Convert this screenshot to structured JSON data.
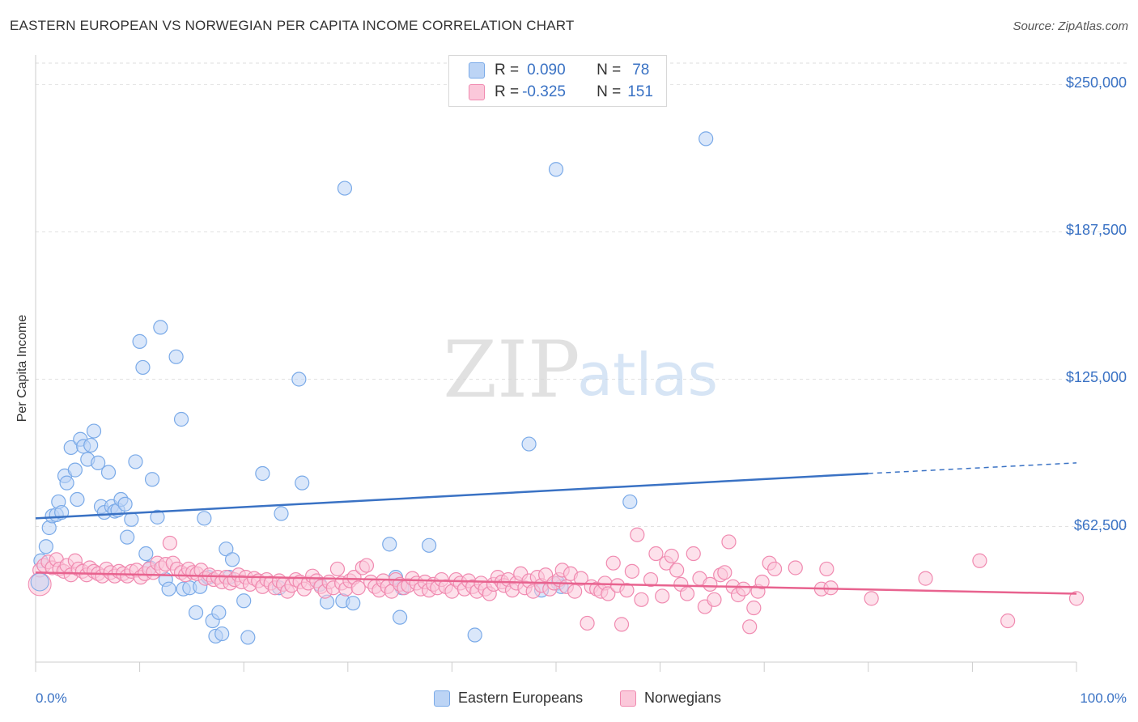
{
  "title": "EASTERN EUROPEAN VS NORWEGIAN PER CAPITA INCOME CORRELATION CHART",
  "source": "Source: ZipAtlas.com",
  "watermark": {
    "zip": "ZIP",
    "atlas": "atlas"
  },
  "legend_stats": [
    {
      "r_label": "R =",
      "r_value": "0.090",
      "n_label": "N =",
      "n_value": "78",
      "color": "#7aaae8",
      "fill": "#bcd4f5"
    },
    {
      "r_label": "R =",
      "r_value": "-0.325",
      "n_label": "N =",
      "n_value": "151",
      "color": "#f08ab0",
      "fill": "#fbc8da"
    }
  ],
  "bottom_legend": [
    {
      "label": "Eastern Europeans",
      "color": "#7aaae8",
      "fill": "#bcd4f5"
    },
    {
      "label": "Norwegians",
      "color": "#f08ab0",
      "fill": "#fbc8da"
    }
  ],
  "x_tick_labels": {
    "left": "0.0%",
    "right": "100.0%"
  },
  "chart_data": {
    "type": "scatter",
    "title": "EASTERN EUROPEAN VS NORWEGIAN PER CAPITA INCOME CORRELATION CHART",
    "xlabel": "",
    "ylabel": "Per Capita Income",
    "xlim": [
      0,
      100
    ],
    "ylim": [
      5000,
      262500
    ],
    "y_ticks": [
      {
        "value": 62500,
        "label": "$62,500"
      },
      {
        "value": 125000,
        "label": "$125,000"
      },
      {
        "value": 187500,
        "label": "$187,500"
      },
      {
        "value": 250000,
        "label": "$250,000"
      }
    ],
    "grid": true,
    "series": [
      {
        "name": "Eastern Europeans",
        "color": "#3a72c4",
        "point_color": "#7aaae8",
        "fill": "#bcd4f5",
        "trend": {
          "x0": 0,
          "y0": 66000,
          "x1": 80,
          "y1": 85000,
          "dash_to_x": 100,
          "dash_to_y": 89500
        },
        "points": [
          [
            0.5,
            48000
          ],
          [
            1,
            54000
          ],
          [
            1.3,
            62000
          ],
          [
            1.6,
            67000
          ],
          [
            2,
            67500
          ],
          [
            2.2,
            73000
          ],
          [
            2.5,
            68500
          ],
          [
            2.8,
            84000
          ],
          [
            3,
            81000
          ],
          [
            3.4,
            96000
          ],
          [
            3.8,
            86500
          ],
          [
            4,
            74000
          ],
          [
            4.3,
            99500
          ],
          [
            4.6,
            96500
          ],
          [
            5,
            91000
          ],
          [
            5.3,
            97000
          ],
          [
            5.6,
            103000
          ],
          [
            6,
            89500
          ],
          [
            6.3,
            71000
          ],
          [
            6.6,
            68500
          ],
          [
            7,
            85500
          ],
          [
            7.3,
            71000
          ],
          [
            7.6,
            69000
          ],
          [
            7.9,
            69500
          ],
          [
            8.2,
            74000
          ],
          [
            8.6,
            72000
          ],
          [
            8.8,
            58000
          ],
          [
            9.2,
            65500
          ],
          [
            9.6,
            90000
          ],
          [
            10,
            141000
          ],
          [
            10.3,
            130000
          ],
          [
            10.6,
            51000
          ],
          [
            11,
            45000
          ],
          [
            11.2,
            82500
          ],
          [
            11.7,
            66500
          ],
          [
            12,
            147000
          ],
          [
            12.5,
            40000
          ],
          [
            12.8,
            36000
          ],
          [
            13.5,
            134500
          ],
          [
            14,
            108000
          ],
          [
            14.2,
            36000
          ],
          [
            14.8,
            36500
          ],
          [
            15.4,
            26000
          ],
          [
            15.8,
            37000
          ],
          [
            16.2,
            66000
          ],
          [
            16.6,
            41000
          ],
          [
            17,
            22500
          ],
          [
            17.3,
            16000
          ],
          [
            17.6,
            26000
          ],
          [
            17.9,
            17000
          ],
          [
            18.3,
            53000
          ],
          [
            18.6,
            41000
          ],
          [
            18.9,
            48500
          ],
          [
            20,
            31000
          ],
          [
            20.4,
            15500
          ],
          [
            21.8,
            85000
          ],
          [
            23.4,
            36500
          ],
          [
            23.6,
            68000
          ],
          [
            25.3,
            125000
          ],
          [
            25.6,
            81000
          ],
          [
            27.3,
            38000
          ],
          [
            28,
            30500
          ],
          [
            29.5,
            31000
          ],
          [
            29.7,
            206000
          ],
          [
            30.5,
            30000
          ],
          [
            34,
            55000
          ],
          [
            34.6,
            41000
          ],
          [
            35,
            24000
          ],
          [
            35.2,
            36500
          ],
          [
            37.8,
            54500
          ],
          [
            42.2,
            16500
          ],
          [
            47.4,
            97500
          ],
          [
            48.6,
            35500
          ],
          [
            50,
            214000
          ],
          [
            50.2,
            38500
          ],
          [
            57.1,
            73000
          ],
          [
            64.4,
            227000
          ],
          [
            50.5,
            37000
          ]
        ]
      },
      {
        "name": "Norwegians",
        "color": "#e8638f",
        "point_color": "#f08ab0",
        "fill": "#fbc8da",
        "trend": {
          "x0": 0,
          "y0": 43000,
          "x1": 100,
          "y1": 34000
        },
        "points": [
          [
            0.4,
            44000
          ],
          [
            0.8,
            46000
          ],
          [
            1.2,
            47500
          ],
          [
            1.6,
            45000
          ],
          [
            2,
            48500
          ],
          [
            2.3,
            44500
          ],
          [
            2.7,
            43500
          ],
          [
            3,
            46000
          ],
          [
            3.4,
            42000
          ],
          [
            3.8,
            48000
          ],
          [
            4.1,
            44500
          ],
          [
            4.5,
            43500
          ],
          [
            4.9,
            42000
          ],
          [
            5.2,
            45000
          ],
          [
            5.6,
            43500
          ],
          [
            6,
            42500
          ],
          [
            6.4,
            41500
          ],
          [
            6.8,
            44500
          ],
          [
            7.2,
            43000
          ],
          [
            7.6,
            41500
          ],
          [
            8,
            43500
          ],
          [
            8.4,
            42500
          ],
          [
            8.8,
            41500
          ],
          [
            9.2,
            43500
          ],
          [
            9.7,
            44000
          ],
          [
            10.1,
            41000
          ],
          [
            10.5,
            42500
          ],
          [
            10.9,
            44500
          ],
          [
            11.3,
            43000
          ],
          [
            11.7,
            47000
          ],
          [
            12.1,
            45000
          ],
          [
            12.5,
            46500
          ],
          [
            12.9,
            55500
          ],
          [
            13.2,
            47000
          ],
          [
            13.6,
            44500
          ],
          [
            14,
            43000
          ],
          [
            14.4,
            42000
          ],
          [
            14.7,
            44500
          ],
          [
            15.1,
            43000
          ],
          [
            15.5,
            42500
          ],
          [
            15.9,
            44000
          ],
          [
            16.3,
            40500
          ],
          [
            16.7,
            42000
          ],
          [
            17.1,
            40000
          ],
          [
            17.5,
            41000
          ],
          [
            17.9,
            39000
          ],
          [
            18.3,
            41000
          ],
          [
            18.7,
            38500
          ],
          [
            19.1,
            40000
          ],
          [
            19.5,
            42000
          ],
          [
            19.8,
            39000
          ],
          [
            20.2,
            41000
          ],
          [
            20.6,
            38000
          ],
          [
            21,
            40500
          ],
          [
            21.4,
            39500
          ],
          [
            21.8,
            37000
          ],
          [
            22.2,
            40000
          ],
          [
            22.6,
            38500
          ],
          [
            23,
            36500
          ],
          [
            23.4,
            39500
          ],
          [
            23.8,
            38000
          ],
          [
            24.2,
            35000
          ],
          [
            24.6,
            37500
          ],
          [
            25,
            40000
          ],
          [
            25.4,
            39000
          ],
          [
            25.8,
            36000
          ],
          [
            26.2,
            38500
          ],
          [
            26.6,
            41500
          ],
          [
            27,
            39500
          ],
          [
            27.4,
            37000
          ],
          [
            27.8,
            35000
          ],
          [
            28.2,
            39000
          ],
          [
            28.6,
            36500
          ],
          [
            29,
            44500
          ],
          [
            29.4,
            38500
          ],
          [
            29.8,
            36000
          ],
          [
            30.2,
            39500
          ],
          [
            30.6,
            41000
          ],
          [
            31,
            36500
          ],
          [
            31.4,
            45000
          ],
          [
            31.8,
            46000
          ],
          [
            32.2,
            39000
          ],
          [
            32.6,
            37000
          ],
          [
            33,
            35500
          ],
          [
            33.4,
            39500
          ],
          [
            33.8,
            37000
          ],
          [
            34.2,
            35000
          ],
          [
            34.6,
            40000
          ],
          [
            35,
            38000
          ],
          [
            35.4,
            36500
          ],
          [
            35.8,
            37500
          ],
          [
            36.2,
            40500
          ],
          [
            36.6,
            38500
          ],
          [
            37,
            36000
          ],
          [
            37.4,
            39000
          ],
          [
            37.8,
            35500
          ],
          [
            38.2,
            38000
          ],
          [
            38.6,
            36500
          ],
          [
            39,
            40000
          ],
          [
            39.4,
            37000
          ],
          [
            40,
            35000
          ],
          [
            40.4,
            40000
          ],
          [
            40.8,
            38500
          ],
          [
            41.2,
            36000
          ],
          [
            41.6,
            39500
          ],
          [
            42,
            37000
          ],
          [
            42.4,
            35000
          ],
          [
            42.8,
            38500
          ],
          [
            43.2,
            36000
          ],
          [
            43.6,
            34000
          ],
          [
            44,
            38000
          ],
          [
            44.4,
            41000
          ],
          [
            44.8,
            39000
          ],
          [
            45,
            37500
          ],
          [
            45.4,
            40000
          ],
          [
            45.8,
            35500
          ],
          [
            46.2,
            38500
          ],
          [
            46.6,
            42500
          ],
          [
            47,
            36500
          ],
          [
            47.4,
            39500
          ],
          [
            47.8,
            35000
          ],
          [
            48.2,
            41000
          ],
          [
            48.6,
            37500
          ],
          [
            49,
            42000
          ],
          [
            49.4,
            36000
          ],
          [
            49.8,
            38500
          ],
          [
            50.3,
            40000
          ],
          [
            50.6,
            44000
          ],
          [
            51,
            37000
          ],
          [
            51.4,
            42500
          ],
          [
            51.8,
            35000
          ],
          [
            52.4,
            40500
          ],
          [
            53,
            21500
          ],
          [
            53.4,
            37000
          ],
          [
            53.9,
            36000
          ],
          [
            54.3,
            35000
          ],
          [
            54.7,
            38500
          ],
          [
            55,
            34000
          ],
          [
            55.5,
            47000
          ],
          [
            55.9,
            37500
          ],
          [
            56.3,
            21000
          ],
          [
            56.8,
            35500
          ],
          [
            57.3,
            43500
          ],
          [
            57.8,
            59000
          ],
          [
            58.2,
            31500
          ],
          [
            59.1,
            40000
          ],
          [
            59.6,
            51000
          ],
          [
            60.2,
            33000
          ],
          [
            60.6,
            47000
          ],
          [
            61.1,
            50000
          ],
          [
            61.6,
            44000
          ],
          [
            62,
            38000
          ],
          [
            62.6,
            34000
          ],
          [
            63.2,
            51000
          ],
          [
            63.8,
            40500
          ],
          [
            64.3,
            28500
          ],
          [
            64.8,
            38000
          ],
          [
            65.2,
            31500
          ],
          [
            65.8,
            42000
          ],
          [
            66.2,
            43000
          ],
          [
            66.6,
            56000
          ],
          [
            67,
            37000
          ],
          [
            67.5,
            33500
          ],
          [
            68,
            36000
          ],
          [
            68.6,
            20000
          ],
          [
            69,
            28000
          ],
          [
            69.4,
            35000
          ],
          [
            69.8,
            39000
          ],
          [
            70.5,
            47000
          ],
          [
            71,
            44500
          ],
          [
            73,
            45000
          ],
          [
            75.5,
            36000
          ],
          [
            76,
            44500
          ],
          [
            76.4,
            36500
          ],
          [
            80.3,
            32000
          ],
          [
            85.5,
            40500
          ],
          [
            90.7,
            48000
          ],
          [
            93.4,
            22500
          ],
          [
            100,
            32000
          ]
        ]
      }
    ]
  }
}
